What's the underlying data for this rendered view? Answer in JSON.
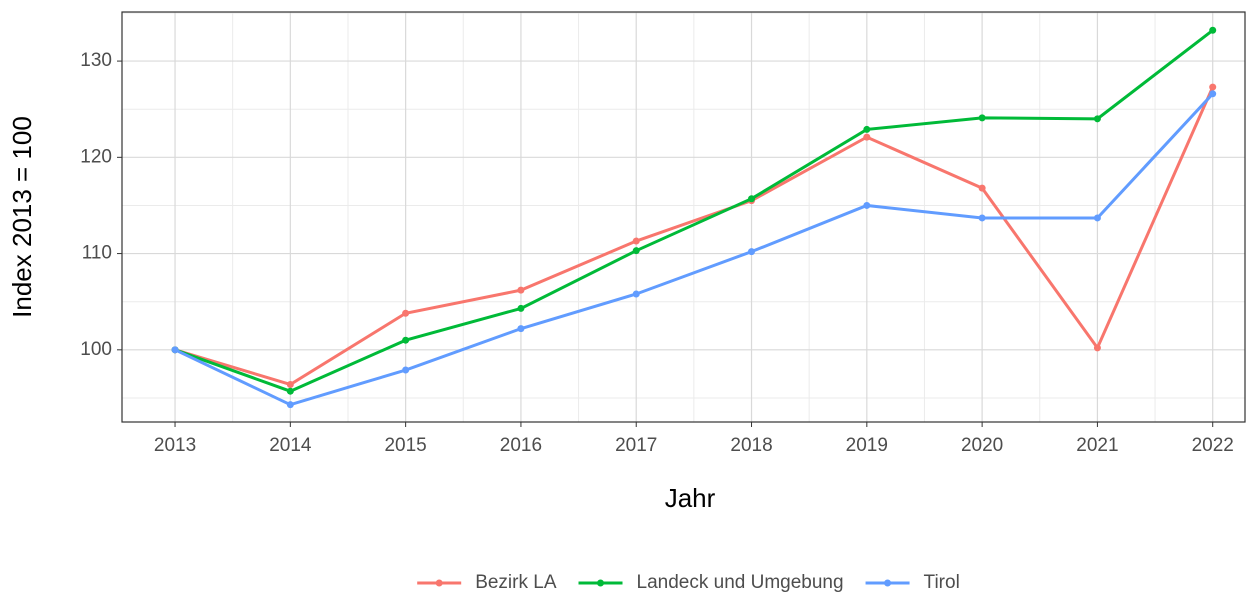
{
  "chart_data": {
    "type": "line",
    "x_label": "Jahr",
    "y_label": "Index  2013  = 100",
    "x": [
      2013,
      2014,
      2015,
      2016,
      2017,
      2018,
      2019,
      2020,
      2021,
      2022
    ],
    "series": [
      {
        "name": "Bezirk LA",
        "color": "#F8766D",
        "values": [
          100,
          96.4,
          103.8,
          106.2,
          111.3,
          115.5,
          122.1,
          116.8,
          100.2,
          127.3
        ]
      },
      {
        "name": "Landeck und Umgebung",
        "color": "#00BA38",
        "values": [
          100,
          95.7,
          101.0,
          104.3,
          110.3,
          115.7,
          122.9,
          124.1,
          124.0,
          133.2
        ]
      },
      {
        "name": "Tirol",
        "color": "#619CFF",
        "values": [
          100,
          94.3,
          97.9,
          102.2,
          105.8,
          110.2,
          115.0,
          113.7,
          113.7,
          126.6
        ]
      }
    ],
    "xlim": [
      2012.54,
      2022.28
    ],
    "xticks": [
      2013,
      2014,
      2015,
      2016,
      2017,
      2018,
      2019,
      2020,
      2021,
      2022
    ],
    "ylim": [
      92.5,
      135.1
    ],
    "yticks": [
      100,
      110,
      120,
      130
    ],
    "grid": true,
    "legend": "bottom"
  }
}
